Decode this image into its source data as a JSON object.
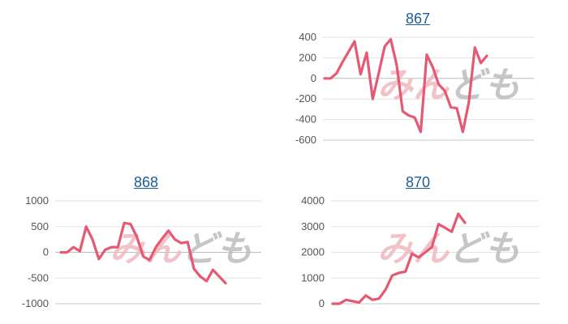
{
  "chart_data": [
    {
      "type": "line",
      "title": "867",
      "ylim": [
        -600,
        400
      ],
      "yticks": [
        400,
        200,
        0,
        -200,
        -400,
        -600
      ],
      "grid": true,
      "series": [
        {
          "color": "#e55a72",
          "values": [
            0,
            0,
            50,
            160,
            260,
            360,
            40,
            250,
            -200,
            50,
            310,
            380,
            130,
            -320,
            -360,
            -380,
            -520,
            230,
            110,
            -60,
            -120,
            -280,
            -290,
            -520,
            -230,
            300,
            150,
            220
          ]
        }
      ]
    },
    {
      "type": "line",
      "title": "868",
      "ylim": [
        -1000,
        1000
      ],
      "yticks": [
        1000,
        500,
        0,
        -500,
        -1000
      ],
      "grid": true,
      "series": [
        {
          "color": "#e55a72",
          "values": [
            0,
            0,
            100,
            20,
            500,
            250,
            -130,
            50,
            100,
            100,
            570,
            550,
            300,
            -80,
            -150,
            100,
            270,
            420,
            250,
            180,
            200,
            -320,
            -470,
            -560,
            -340,
            -470,
            -600
          ]
        }
      ]
    },
    {
      "type": "line",
      "title": "870",
      "ylim": [
        0,
        4000
      ],
      "yticks": [
        4000,
        3000,
        2000,
        1000,
        0
      ],
      "grid": true,
      "series": [
        {
          "color": "#e55a72",
          "values": [
            0,
            0,
            150,
            100,
            50,
            320,
            150,
            200,
            550,
            1100,
            1200,
            1250,
            1950,
            1800,
            2000,
            2200,
            3100,
            2950,
            2800,
            3500,
            3150
          ]
        }
      ]
    }
  ],
  "watermark": {
    "text_a": "みん",
    "text_b": "ども",
    "color_a": "#f0b8c0",
    "color_b": "#bdbdbd"
  },
  "colors": {
    "title_link": "#1a5c9e",
    "line": "#e55a72",
    "grid": "#e3e3e3"
  }
}
